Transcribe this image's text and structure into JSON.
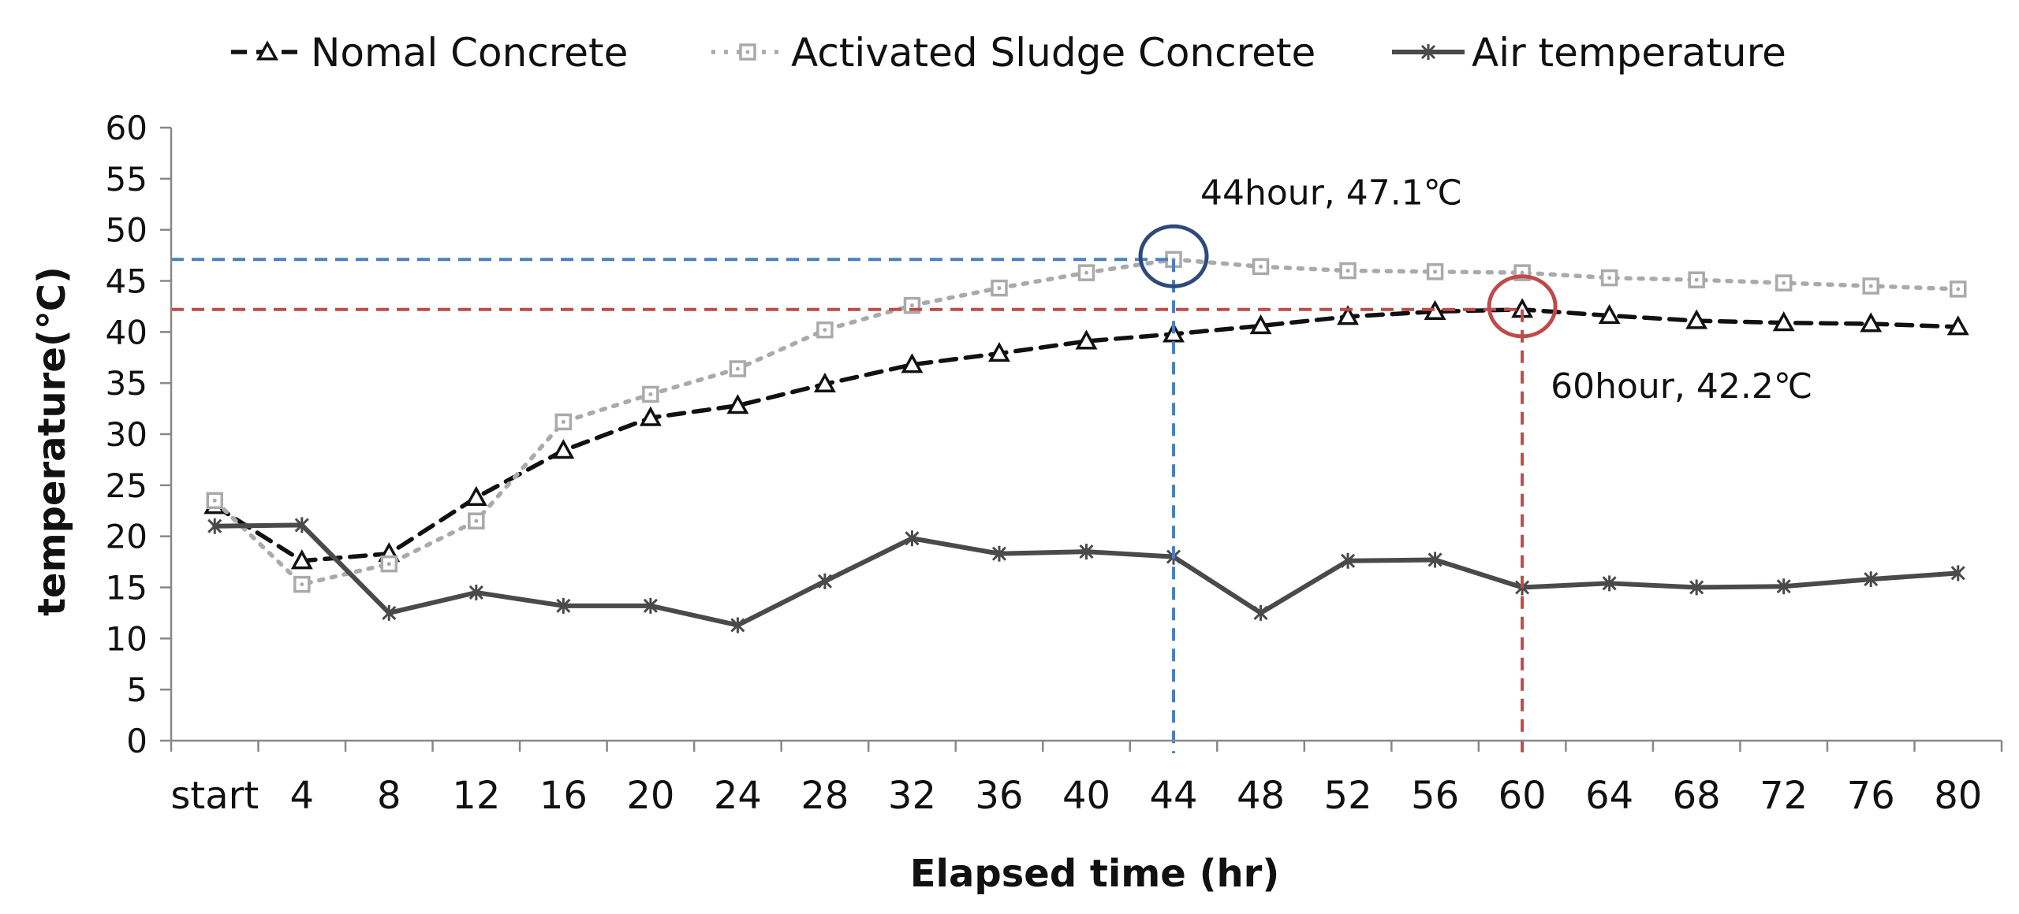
{
  "chart_data": {
    "type": "line",
    "categories": [
      "start",
      "4",
      "8",
      "12",
      "16",
      "20",
      "24",
      "28",
      "32",
      "36",
      "40",
      "44",
      "48",
      "52",
      "56",
      "60",
      "64",
      "68",
      "72",
      "76",
      "80"
    ],
    "series": [
      {
        "name": "Nomal Concrete",
        "values": [
          23.0,
          17.6,
          18.3,
          23.8,
          28.4,
          31.6,
          32.8,
          34.9,
          36.8,
          37.9,
          39.1,
          39.8,
          40.6,
          41.5,
          42.0,
          42.2,
          41.6,
          41.1,
          40.9,
          40.8,
          40.5
        ],
        "color": "#111111",
        "marker": "triangle",
        "line_style": "dashed"
      },
      {
        "name": "Activated Sludge Concrete",
        "values": [
          23.5,
          15.3,
          17.3,
          21.5,
          31.2,
          33.9,
          36.4,
          40.2,
          42.6,
          44.3,
          45.8,
          47.1,
          46.4,
          46.0,
          45.9,
          45.8,
          45.3,
          45.1,
          44.8,
          44.5,
          44.2
        ],
        "color": "#aaaaaa",
        "marker": "square",
        "line_style": "dotted"
      },
      {
        "name": "Air temperature",
        "values": [
          21.0,
          21.1,
          12.5,
          14.5,
          13.2,
          13.2,
          11.3,
          15.6,
          19.8,
          18.3,
          18.5,
          18.0,
          12.5,
          17.6,
          17.7,
          15.0,
          15.4,
          15.0,
          15.1,
          15.8,
          16.4
        ],
        "color": "#4a4a4a",
        "marker": "asterisk",
        "line_style": "solid"
      }
    ],
    "xlabel": "Elapsed time (hr)",
    "ylabel": "temperature(℃)",
    "ylim": [
      0,
      60
    ],
    "yticks": [
      "0",
      "5",
      "10",
      "15",
      "20",
      "25",
      "30",
      "35",
      "40",
      "45",
      "50",
      "55",
      "60"
    ],
    "grid": false,
    "legend_position": "top",
    "annotations": [
      {
        "text": "44hour, 47.1℃",
        "category": "44",
        "value": 47.1,
        "color": "#4a7fbf",
        "circle_color": "#2e4a7a",
        "label_side": "above"
      },
      {
        "text": "60hour, 42.2℃",
        "category": "60",
        "value": 42.2,
        "color": "#bf4a4a",
        "circle_color": "#bf4a4a",
        "label_side": "below"
      }
    ]
  }
}
